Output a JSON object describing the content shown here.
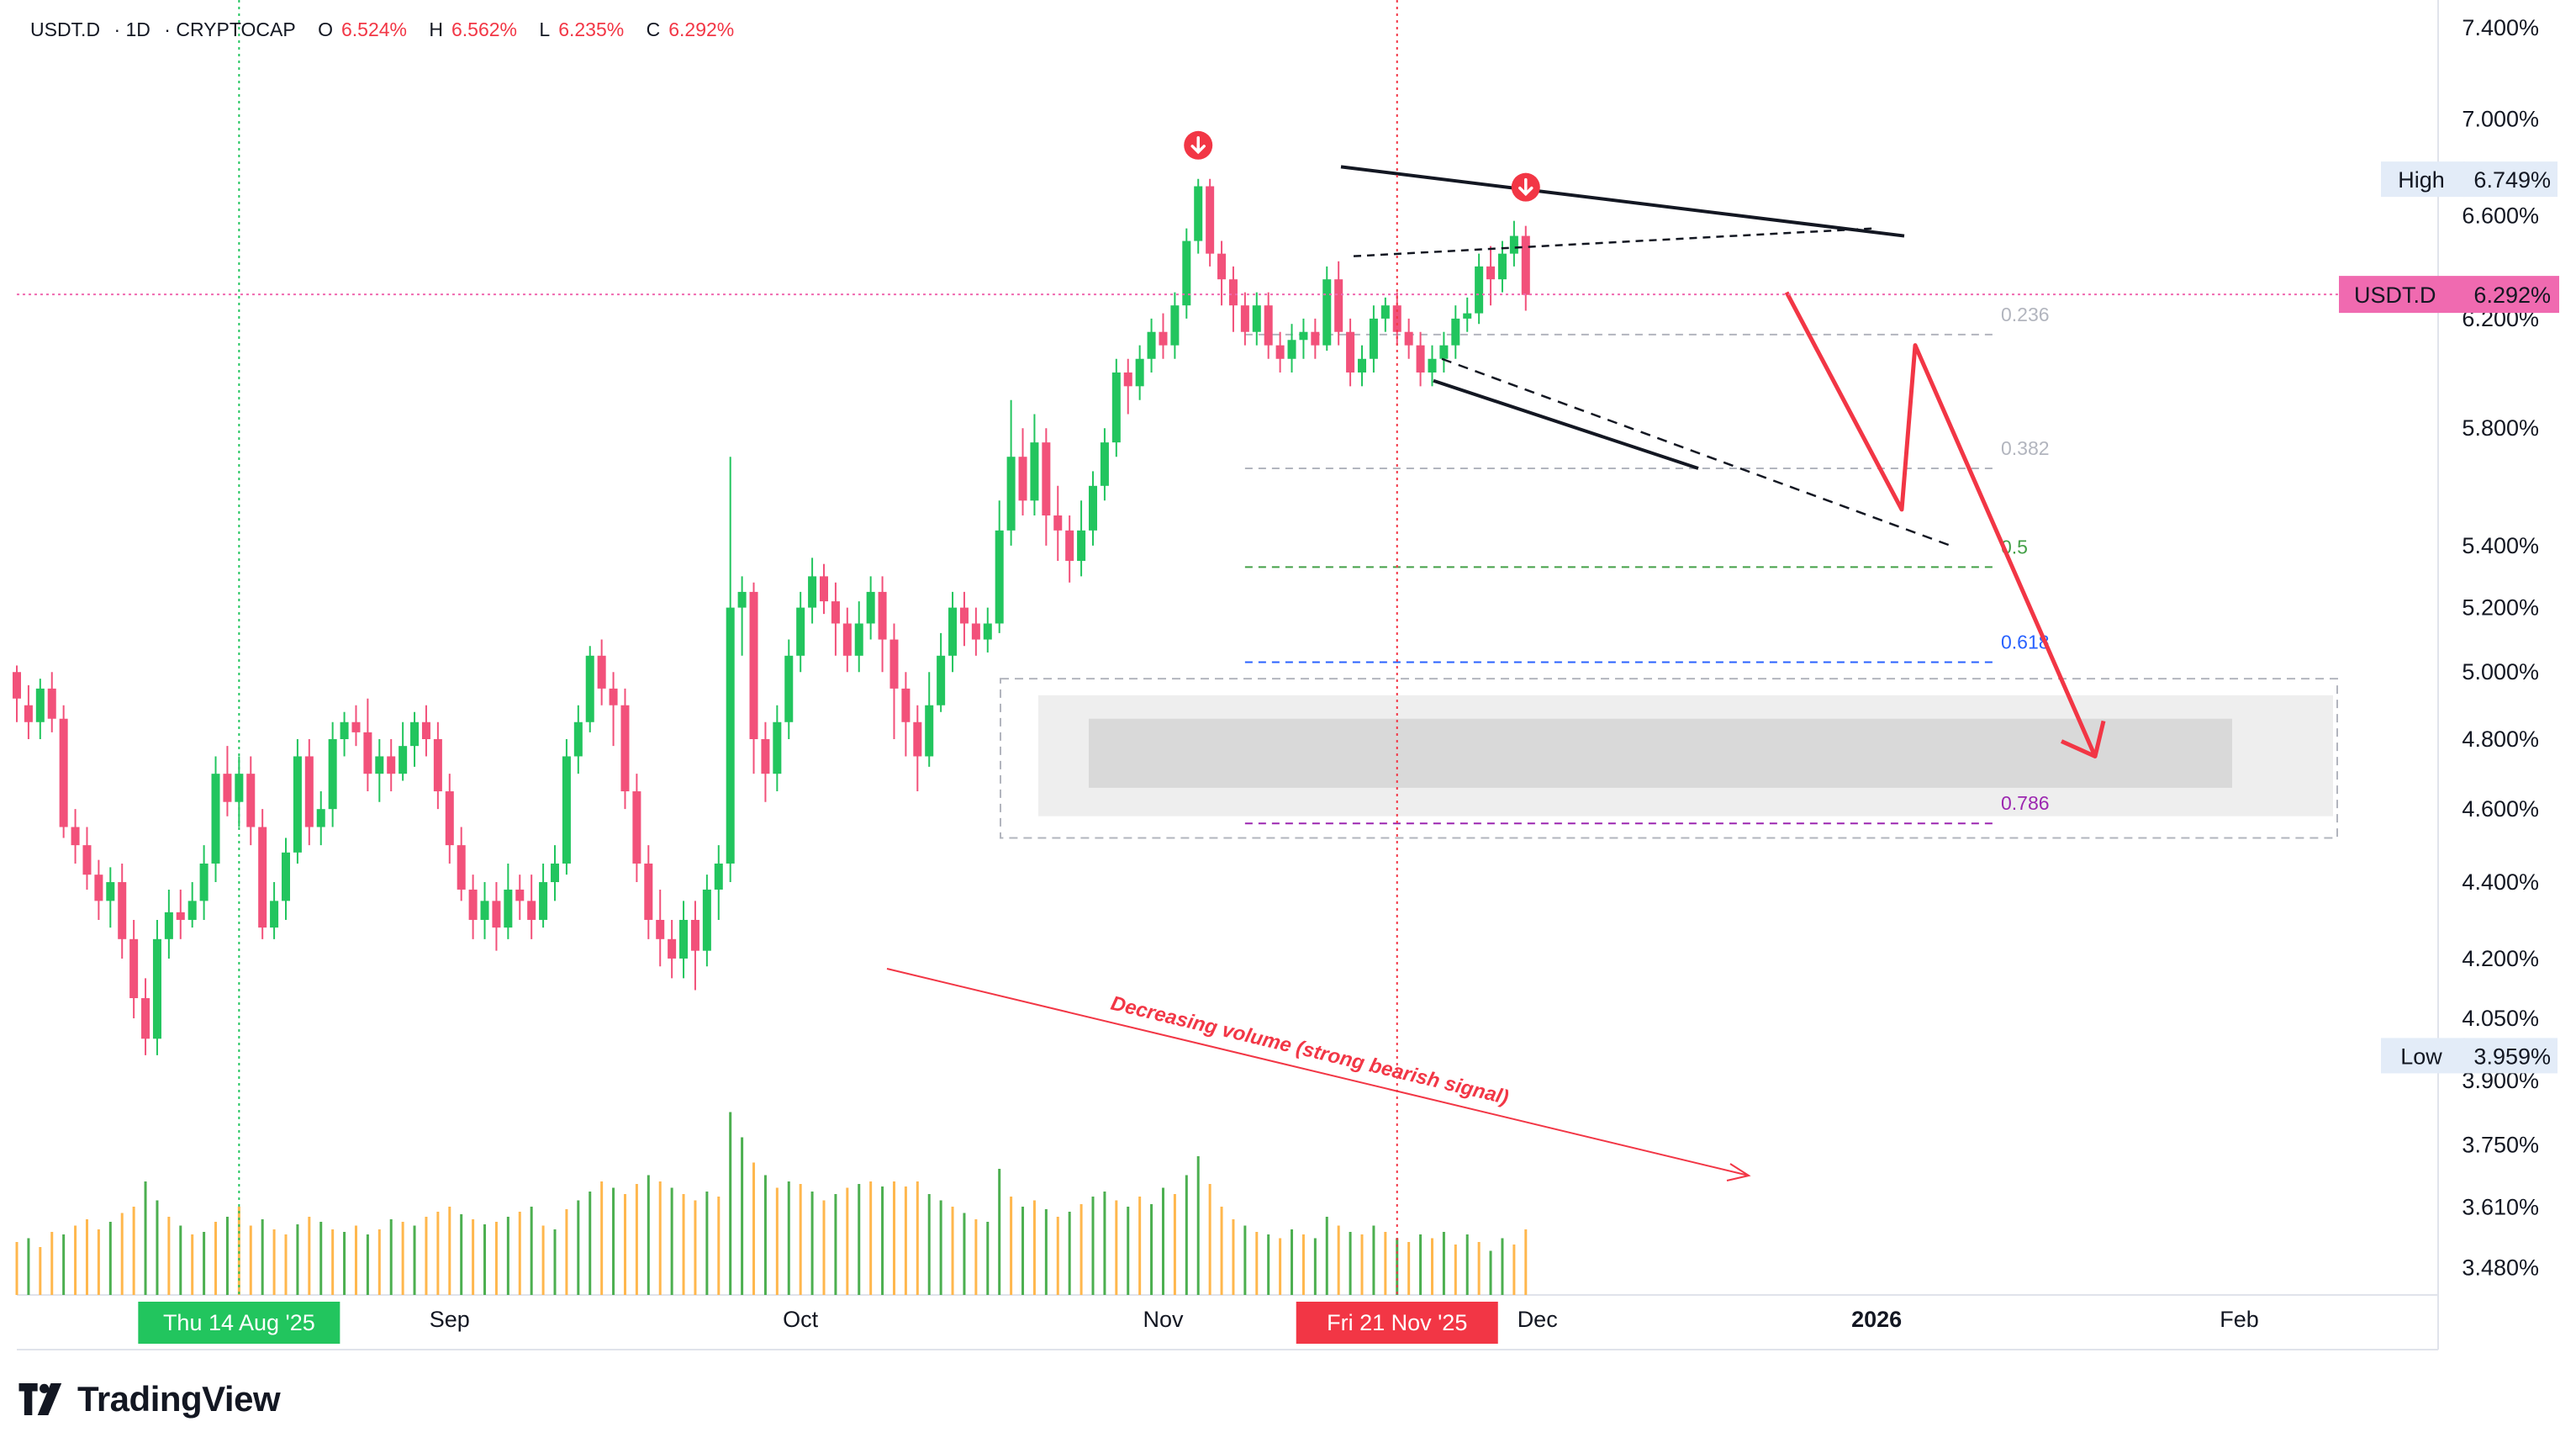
{
  "header": {
    "symbol": "USDT.D",
    "interval": "1D",
    "exchange": "CRYPTOCAP",
    "open_label": "O",
    "open": "6.524%",
    "high_label": "H",
    "high": "6.562%",
    "low_label": "L",
    "low": "6.235%",
    "close_label": "C",
    "close": "6.292%"
  },
  "brand": {
    "name": "TradingView"
  },
  "colors": {
    "up": "#22c55e",
    "down": "#f2517a",
    "volume_up": "#4caf50",
    "volume_down": "#ffb74d",
    "arrow": "#f23645",
    "zone": "#d9d9d9"
  },
  "chart_data": {
    "type": "candlestick",
    "scale": "log",
    "yticks": [
      "7.400%",
      "7.000%",
      "6.600%",
      "6.200%",
      "5.800%",
      "5.400%",
      "5.200%",
      "5.000%",
      "4.800%",
      "4.600%",
      "4.400%",
      "4.200%",
      "4.050%",
      "3.900%",
      "3.750%",
      "3.610%",
      "3.480%"
    ],
    "ytick_values": [
      7.4,
      7.0,
      6.6,
      6.2,
      5.8,
      5.4,
      5.2,
      5.0,
      4.8,
      4.6,
      4.4,
      4.2,
      4.05,
      3.9,
      3.75,
      3.61,
      3.48
    ],
    "ylim": [
      3.44,
      7.45
    ],
    "x_range": [
      "2025-07-26",
      "2026-02-18"
    ],
    "xticks": [
      {
        "label": "Sep",
        "date": "2025-09-01"
      },
      {
        "label": "Oct",
        "date": "2025-10-01"
      },
      {
        "label": "Nov",
        "date": "2025-11-01"
      },
      {
        "label": "Dec",
        "date": "2025-12-03"
      },
      {
        "label": "2026",
        "date": "2026-01-01"
      },
      {
        "label": "Feb",
        "date": "2026-02-01"
      }
    ],
    "crosshair_labels": [
      {
        "label": "Thu 14 Aug '25",
        "date": "2025-08-14"
      },
      {
        "label": "Fri 21 Nov '25",
        "date": "2025-11-21"
      }
    ],
    "price_badges": [
      {
        "name": "High",
        "value": "6.749%",
        "price": 6.749
      },
      {
        "name": "USDT.D",
        "value": "6.292%",
        "price": 6.292
      },
      {
        "name": "Low",
        "value": "3.959%",
        "price": 3.959
      }
    ],
    "fib_levels": [
      {
        "label": "0.236",
        "price": 6.14
      },
      {
        "label": "0.382",
        "price": 5.66
      },
      {
        "label": "0.5",
        "price": 5.33
      },
      {
        "label": "0.618",
        "price": 5.03
      },
      {
        "label": "0.786",
        "price": 4.56
      }
    ],
    "annotation": "Decreasing volume (strong bearish signal)",
    "candles": [
      [
        5.0,
        4.92,
        5.02,
        4.85
      ],
      [
        4.9,
        4.85,
        4.96,
        4.8
      ],
      [
        4.85,
        4.95,
        4.98,
        4.8
      ],
      [
        4.95,
        4.86,
        5.0,
        4.82
      ],
      [
        4.86,
        4.55,
        4.9,
        4.52
      ],
      [
        4.55,
        4.5,
        4.6,
        4.45
      ],
      [
        4.5,
        4.42,
        4.55,
        4.38
      ],
      [
        4.42,
        4.35,
        4.46,
        4.3
      ],
      [
        4.35,
        4.4,
        4.44,
        4.28
      ],
      [
        4.4,
        4.25,
        4.45,
        4.2
      ],
      [
        4.25,
        4.1,
        4.3,
        4.05
      ],
      [
        4.1,
        4.0,
        4.15,
        3.96
      ],
      [
        4.0,
        4.25,
        4.3,
        3.96
      ],
      [
        4.25,
        4.32,
        4.38,
        4.2
      ],
      [
        4.32,
        4.3,
        4.38,
        4.25
      ],
      [
        4.3,
        4.35,
        4.4,
        4.28
      ],
      [
        4.35,
        4.45,
        4.5,
        4.3
      ],
      [
        4.45,
        4.7,
        4.75,
        4.4
      ],
      [
        4.7,
        4.62,
        4.78,
        4.58
      ],
      [
        4.62,
        4.7,
        4.75,
        4.55
      ],
      [
        4.7,
        4.55,
        4.75,
        4.5
      ],
      [
        4.55,
        4.28,
        4.6,
        4.25
      ],
      [
        4.28,
        4.35,
        4.4,
        4.25
      ],
      [
        4.35,
        4.48,
        4.52,
        4.3
      ],
      [
        4.48,
        4.75,
        4.8,
        4.45
      ],
      [
        4.75,
        4.55,
        4.8,
        4.5
      ],
      [
        4.55,
        4.6,
        4.65,
        4.5
      ],
      [
        4.6,
        4.8,
        4.85,
        4.55
      ],
      [
        4.8,
        4.85,
        4.88,
        4.75
      ],
      [
        4.85,
        4.82,
        4.9,
        4.78
      ],
      [
        4.82,
        4.7,
        4.92,
        4.65
      ],
      [
        4.7,
        4.75,
        4.8,
        4.62
      ],
      [
        4.75,
        4.7,
        4.8,
        4.65
      ],
      [
        4.7,
        4.78,
        4.85,
        4.68
      ],
      [
        4.78,
        4.85,
        4.88,
        4.72
      ],
      [
        4.85,
        4.8,
        4.9,
        4.75
      ],
      [
        4.8,
        4.65,
        4.85,
        4.6
      ],
      [
        4.65,
        4.5,
        4.7,
        4.45
      ],
      [
        4.5,
        4.38,
        4.55,
        4.35
      ],
      [
        4.38,
        4.3,
        4.42,
        4.25
      ],
      [
        4.3,
        4.35,
        4.4,
        4.25
      ],
      [
        4.35,
        4.28,
        4.4,
        4.22
      ],
      [
        4.28,
        4.38,
        4.45,
        4.25
      ],
      [
        4.38,
        4.35,
        4.42,
        4.3
      ],
      [
        4.35,
        4.3,
        4.42,
        4.25
      ],
      [
        4.3,
        4.4,
        4.45,
        4.28
      ],
      [
        4.4,
        4.45,
        4.5,
        4.35
      ],
      [
        4.45,
        4.75,
        4.8,
        4.42
      ],
      [
        4.75,
        4.85,
        4.9,
        4.7
      ],
      [
        4.85,
        5.05,
        5.08,
        4.82
      ],
      [
        5.05,
        4.95,
        5.1,
        4.9
      ],
      [
        4.95,
        4.9,
        5.0,
        4.78
      ],
      [
        4.9,
        4.65,
        4.95,
        4.6
      ],
      [
        4.65,
        4.45,
        4.7,
        4.4
      ],
      [
        4.45,
        4.3,
        4.5,
        4.25
      ],
      [
        4.3,
        4.25,
        4.38,
        4.18
      ],
      [
        4.25,
        4.2,
        4.3,
        4.15
      ],
      [
        4.2,
        4.3,
        4.35,
        4.15
      ],
      [
        4.3,
        4.22,
        4.35,
        4.12
      ],
      [
        4.22,
        4.38,
        4.42,
        4.18
      ],
      [
        4.38,
        4.45,
        4.5,
        4.3
      ],
      [
        4.45,
        5.2,
        5.7,
        4.4
      ],
      [
        5.2,
        5.25,
        5.3,
        5.05
      ],
      [
        5.25,
        4.8,
        5.28,
        4.7
      ],
      [
        4.8,
        4.7,
        4.85,
        4.62
      ],
      [
        4.7,
        4.85,
        4.9,
        4.65
      ],
      [
        4.85,
        5.05,
        5.1,
        4.8
      ],
      [
        5.05,
        5.2,
        5.25,
        5.0
      ],
      [
        5.2,
        5.3,
        5.36,
        5.15
      ],
      [
        5.3,
        5.22,
        5.34,
        5.18
      ],
      [
        5.22,
        5.15,
        5.28,
        5.05
      ],
      [
        5.15,
        5.05,
        5.2,
        5.0
      ],
      [
        5.05,
        5.15,
        5.22,
        5.0
      ],
      [
        5.15,
        5.25,
        5.3,
        5.1
      ],
      [
        5.25,
        5.1,
        5.3,
        5.0
      ],
      [
        5.1,
        4.95,
        5.15,
        4.8
      ],
      [
        4.95,
        4.85,
        5.0,
        4.75
      ],
      [
        4.85,
        4.75,
        4.9,
        4.65
      ],
      [
        4.75,
        4.9,
        5.0,
        4.72
      ],
      [
        4.9,
        5.05,
        5.12,
        4.88
      ],
      [
        5.05,
        5.2,
        5.25,
        5.0
      ],
      [
        5.2,
        5.15,
        5.25,
        5.08
      ],
      [
        5.15,
        5.1,
        5.2,
        5.05
      ],
      [
        5.1,
        5.15,
        5.2,
        5.06
      ],
      [
        5.15,
        5.45,
        5.55,
        5.12
      ],
      [
        5.45,
        5.7,
        5.9,
        5.4
      ],
      [
        5.7,
        5.55,
        5.8,
        5.5
      ],
      [
        5.55,
        5.75,
        5.85,
        5.5
      ],
      [
        5.75,
        5.5,
        5.8,
        5.4
      ],
      [
        5.5,
        5.45,
        5.6,
        5.35
      ],
      [
        5.45,
        5.35,
        5.5,
        5.28
      ],
      [
        5.35,
        5.45,
        5.55,
        5.3
      ],
      [
        5.45,
        5.6,
        5.65,
        5.4
      ],
      [
        5.6,
        5.75,
        5.8,
        5.55
      ],
      [
        5.75,
        6.0,
        6.05,
        5.7
      ],
      [
        6.0,
        5.95,
        6.05,
        5.85
      ],
      [
        5.95,
        6.05,
        6.1,
        5.9
      ],
      [
        6.05,
        6.15,
        6.2,
        6.0
      ],
      [
        6.15,
        6.1,
        6.22,
        6.05
      ],
      [
        6.1,
        6.25,
        6.3,
        6.05
      ],
      [
        6.25,
        6.5,
        6.55,
        6.2
      ],
      [
        6.5,
        6.72,
        6.75,
        6.45
      ],
      [
        6.72,
        6.45,
        6.75,
        6.4
      ],
      [
        6.45,
        6.35,
        6.5,
        6.25
      ],
      [
        6.35,
        6.25,
        6.4,
        6.15
      ],
      [
        6.25,
        6.15,
        6.3,
        6.1
      ],
      [
        6.15,
        6.25,
        6.3,
        6.1
      ],
      [
        6.25,
        6.1,
        6.3,
        6.05
      ],
      [
        6.1,
        6.05,
        6.15,
        6.0
      ],
      [
        6.05,
        6.12,
        6.18,
        6.0
      ],
      [
        6.12,
        6.15,
        6.2,
        6.05
      ],
      [
        6.15,
        6.1,
        6.2,
        6.05
      ],
      [
        6.1,
        6.35,
        6.4,
        6.08
      ],
      [
        6.35,
        6.15,
        6.42,
        6.1
      ],
      [
        6.15,
        6.0,
        6.2,
        5.95
      ],
      [
        6.0,
        6.05,
        6.1,
        5.95
      ],
      [
        6.05,
        6.2,
        6.25,
        6.0
      ],
      [
        6.2,
        6.25,
        6.28,
        6.15
      ],
      [
        6.25,
        6.15,
        6.3,
        6.1
      ],
      [
        6.15,
        6.1,
        6.2,
        6.05
      ],
      [
        6.1,
        6.0,
        6.15,
        5.95
      ],
      [
        6.0,
        6.05,
        6.1,
        5.95
      ],
      [
        6.05,
        6.1,
        6.15,
        6.0
      ],
      [
        6.1,
        6.2,
        6.25,
        6.05
      ],
      [
        6.2,
        6.22,
        6.28,
        6.15
      ],
      [
        6.22,
        6.4,
        6.45,
        6.18
      ],
      [
        6.4,
        6.35,
        6.48,
        6.25
      ],
      [
        6.35,
        6.45,
        6.5,
        6.3
      ],
      [
        6.45,
        6.52,
        6.58,
        6.4
      ],
      [
        6.52,
        6.29,
        6.56,
        6.23
      ]
    ],
    "volume": [
      [
        "d",
        0.42
      ],
      [
        "u",
        0.45
      ],
      [
        "d",
        0.38
      ],
      [
        "d",
        0.5
      ],
      [
        "u",
        0.48
      ],
      [
        "d",
        0.55
      ],
      [
        "d",
        0.6
      ],
      [
        "d",
        0.52
      ],
      [
        "u",
        0.58
      ],
      [
        "d",
        0.65
      ],
      [
        "d",
        0.7
      ],
      [
        "u",
        0.9
      ],
      [
        "u",
        0.75
      ],
      [
        "d",
        0.62
      ],
      [
        "u",
        0.55
      ],
      [
        "d",
        0.48
      ],
      [
        "u",
        0.5
      ],
      [
        "d",
        0.58
      ],
      [
        "u",
        0.62
      ],
      [
        "d",
        0.7
      ],
      [
        "d",
        0.55
      ],
      [
        "u",
        0.6
      ],
      [
        "d",
        0.52
      ],
      [
        "d",
        0.48
      ],
      [
        "u",
        0.56
      ],
      [
        "d",
        0.62
      ],
      [
        "u",
        0.58
      ],
      [
        "d",
        0.52
      ],
      [
        "u",
        0.5
      ],
      [
        "d",
        0.55
      ],
      [
        "u",
        0.48
      ],
      [
        "d",
        0.52
      ],
      [
        "u",
        0.6
      ],
      [
        "d",
        0.58
      ],
      [
        "u",
        0.55
      ],
      [
        "d",
        0.62
      ],
      [
        "d",
        0.66
      ],
      [
        "d",
        0.7
      ],
      [
        "u",
        0.64
      ],
      [
        "d",
        0.6
      ],
      [
        "u",
        0.56
      ],
      [
        "d",
        0.58
      ],
      [
        "u",
        0.62
      ],
      [
        "d",
        0.66
      ],
      [
        "u",
        0.7
      ],
      [
        "d",
        0.55
      ],
      [
        "u",
        0.52
      ],
      [
        "d",
        0.68
      ],
      [
        "u",
        0.75
      ],
      [
        "u",
        0.82
      ],
      [
        "d",
        0.9
      ],
      [
        "u",
        0.85
      ],
      [
        "d",
        0.8
      ],
      [
        "d",
        0.88
      ],
      [
        "u",
        0.95
      ],
      [
        "d",
        0.9
      ],
      [
        "u",
        0.85
      ],
      [
        "d",
        0.8
      ],
      [
        "d",
        0.75
      ],
      [
        "u",
        0.82
      ],
      [
        "d",
        0.78
      ],
      [
        "u",
        1.45
      ],
      [
        "u",
        1.25
      ],
      [
        "d",
        1.05
      ],
      [
        "u",
        0.95
      ],
      [
        "d",
        0.85
      ],
      [
        "u",
        0.9
      ],
      [
        "d",
        0.88
      ],
      [
        "u",
        0.82
      ],
      [
        "d",
        0.75
      ],
      [
        "u",
        0.8
      ],
      [
        "d",
        0.85
      ],
      [
        "u",
        0.88
      ],
      [
        "d",
        0.9
      ],
      [
        "u",
        0.86
      ],
      [
        "d",
        0.9
      ],
      [
        "d",
        0.86
      ],
      [
        "d",
        0.9
      ],
      [
        "u",
        0.8
      ],
      [
        "u",
        0.75
      ],
      [
        "d",
        0.7
      ],
      [
        "u",
        0.65
      ],
      [
        "d",
        0.6
      ],
      [
        "u",
        0.58
      ],
      [
        "u",
        1.0
      ],
      [
        "d",
        0.78
      ],
      [
        "u",
        0.7
      ],
      [
        "d",
        0.75
      ],
      [
        "u",
        0.68
      ],
      [
        "d",
        0.62
      ],
      [
        "u",
        0.66
      ],
      [
        "d",
        0.72
      ],
      [
        "u",
        0.78
      ],
      [
        "u",
        0.82
      ],
      [
        "d",
        0.75
      ],
      [
        "u",
        0.7
      ],
      [
        "d",
        0.78
      ],
      [
        "u",
        0.72
      ],
      [
        "u",
        0.85
      ],
      [
        "d",
        0.8
      ],
      [
        "u",
        0.95
      ],
      [
        "u",
        1.1
      ],
      [
        "d",
        0.88
      ],
      [
        "d",
        0.7
      ],
      [
        "d",
        0.6
      ],
      [
        "u",
        0.55
      ],
      [
        "d",
        0.5
      ],
      [
        "u",
        0.48
      ],
      [
        "d",
        0.45
      ],
      [
        "u",
        0.52
      ],
      [
        "d",
        0.48
      ],
      [
        "u",
        0.45
      ],
      [
        "u",
        0.62
      ],
      [
        "d",
        0.55
      ],
      [
        "u",
        0.5
      ],
      [
        "d",
        0.48
      ],
      [
        "u",
        0.55
      ],
      [
        "d",
        0.5
      ],
      [
        "u",
        0.45
      ],
      [
        "d",
        0.42
      ],
      [
        "u",
        0.48
      ],
      [
        "d",
        0.45
      ],
      [
        "u",
        0.5
      ],
      [
        "d",
        0.4
      ],
      [
        "u",
        0.48
      ],
      [
        "d",
        0.42
      ],
      [
        "u",
        0.35
      ],
      [
        "u",
        0.45
      ],
      [
        "d",
        0.4
      ],
      [
        "d",
        0.52
      ]
    ]
  }
}
